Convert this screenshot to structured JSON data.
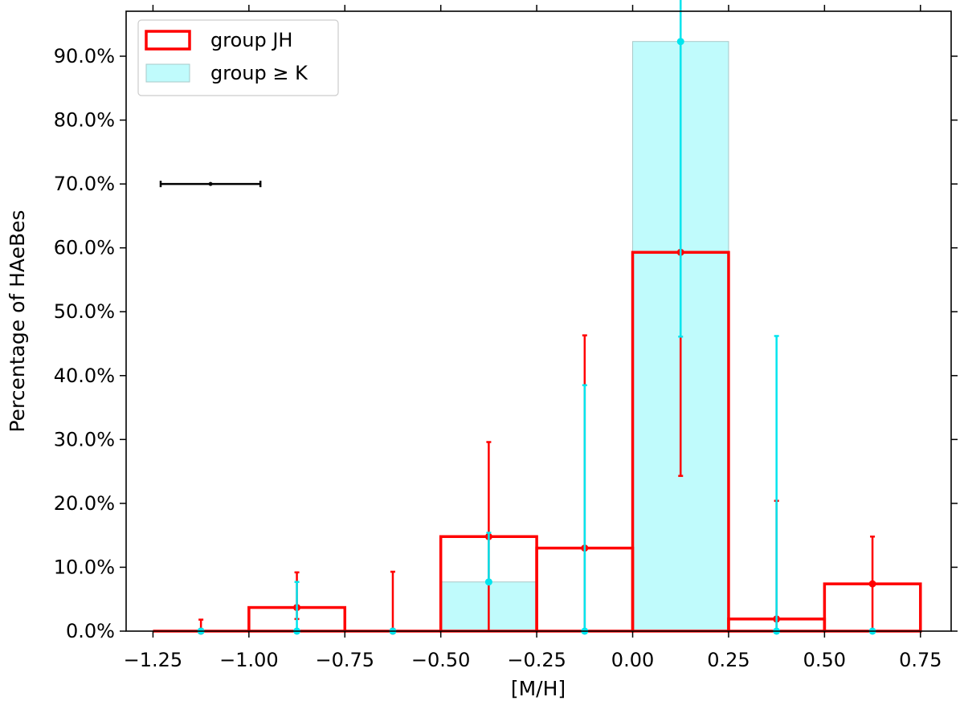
{
  "chart_data": {
    "type": "bar",
    "title": "",
    "xlabel": "[M/H]",
    "ylabel": "Percentage of HAeBes",
    "xlim": [
      -1.32,
      0.83
    ],
    "ylim": [
      0,
      0.92
    ],
    "x_ticks": [
      -1.25,
      -1.0,
      -0.75,
      -0.5,
      -0.25,
      0.0,
      0.25,
      0.5,
      0.75
    ],
    "x_tick_labels": [
      "−1.25",
      "−1.00",
      "−0.75",
      "−0.50",
      "−0.25",
      "0.00",
      "0.25",
      "0.50",
      "0.75"
    ],
    "y_ticks": [
      0.0,
      0.1,
      0.2,
      0.3,
      0.4,
      0.5,
      0.6,
      0.7,
      0.8,
      0.9
    ],
    "y_tick_labels": [
      "0.0%",
      "10.0%",
      "20.0%",
      "30.0%",
      "40.0%",
      "50.0%",
      "60.0%",
      "70.0%",
      "80.0%",
      "90.0%"
    ],
    "bin_edges": [
      -1.25,
      -1.0,
      -0.75,
      -0.5,
      -0.25,
      0.0,
      0.25,
      0.5,
      0.75
    ],
    "bin_centers": [
      -1.125,
      -0.875,
      -0.625,
      -0.375,
      -0.125,
      0.125,
      0.375,
      0.625
    ],
    "legend": {
      "position": "top-left"
    },
    "series": [
      {
        "name": "group JH",
        "style": "step-outline",
        "color": "#ff0000",
        "values": [
          0.0,
          0.037,
          0.0,
          0.148,
          0.13,
          0.593,
          0.019,
          0.074
        ],
        "err_low": [
          0.0,
          0.018,
          0.0,
          0.148,
          0.13,
          0.35,
          0.019,
          0.074
        ],
        "err_high": [
          0.018,
          0.055,
          0.093,
          0.148,
          0.333,
          0.46,
          0.185,
          0.074
        ]
      },
      {
        "name": "group ≥ K",
        "style": "filled",
        "color": "#00e5ee",
        "fill": "#c0fbfc",
        "values": [
          0.0,
          0.0,
          0.0,
          0.077,
          0.0,
          0.923,
          0.0,
          0.0
        ],
        "err_low": [
          0.0,
          0.0,
          0.0,
          0.0,
          0.0,
          0.462,
          0.0,
          0.0
        ],
        "err_high": [
          0.0,
          0.077,
          0.0,
          0.077,
          0.385,
          0.923,
          0.462,
          0.0
        ]
      }
    ],
    "reference_errorbar": {
      "x": -1.1,
      "y": 0.7,
      "xerr": 0.13,
      "color": "#000000"
    }
  }
}
